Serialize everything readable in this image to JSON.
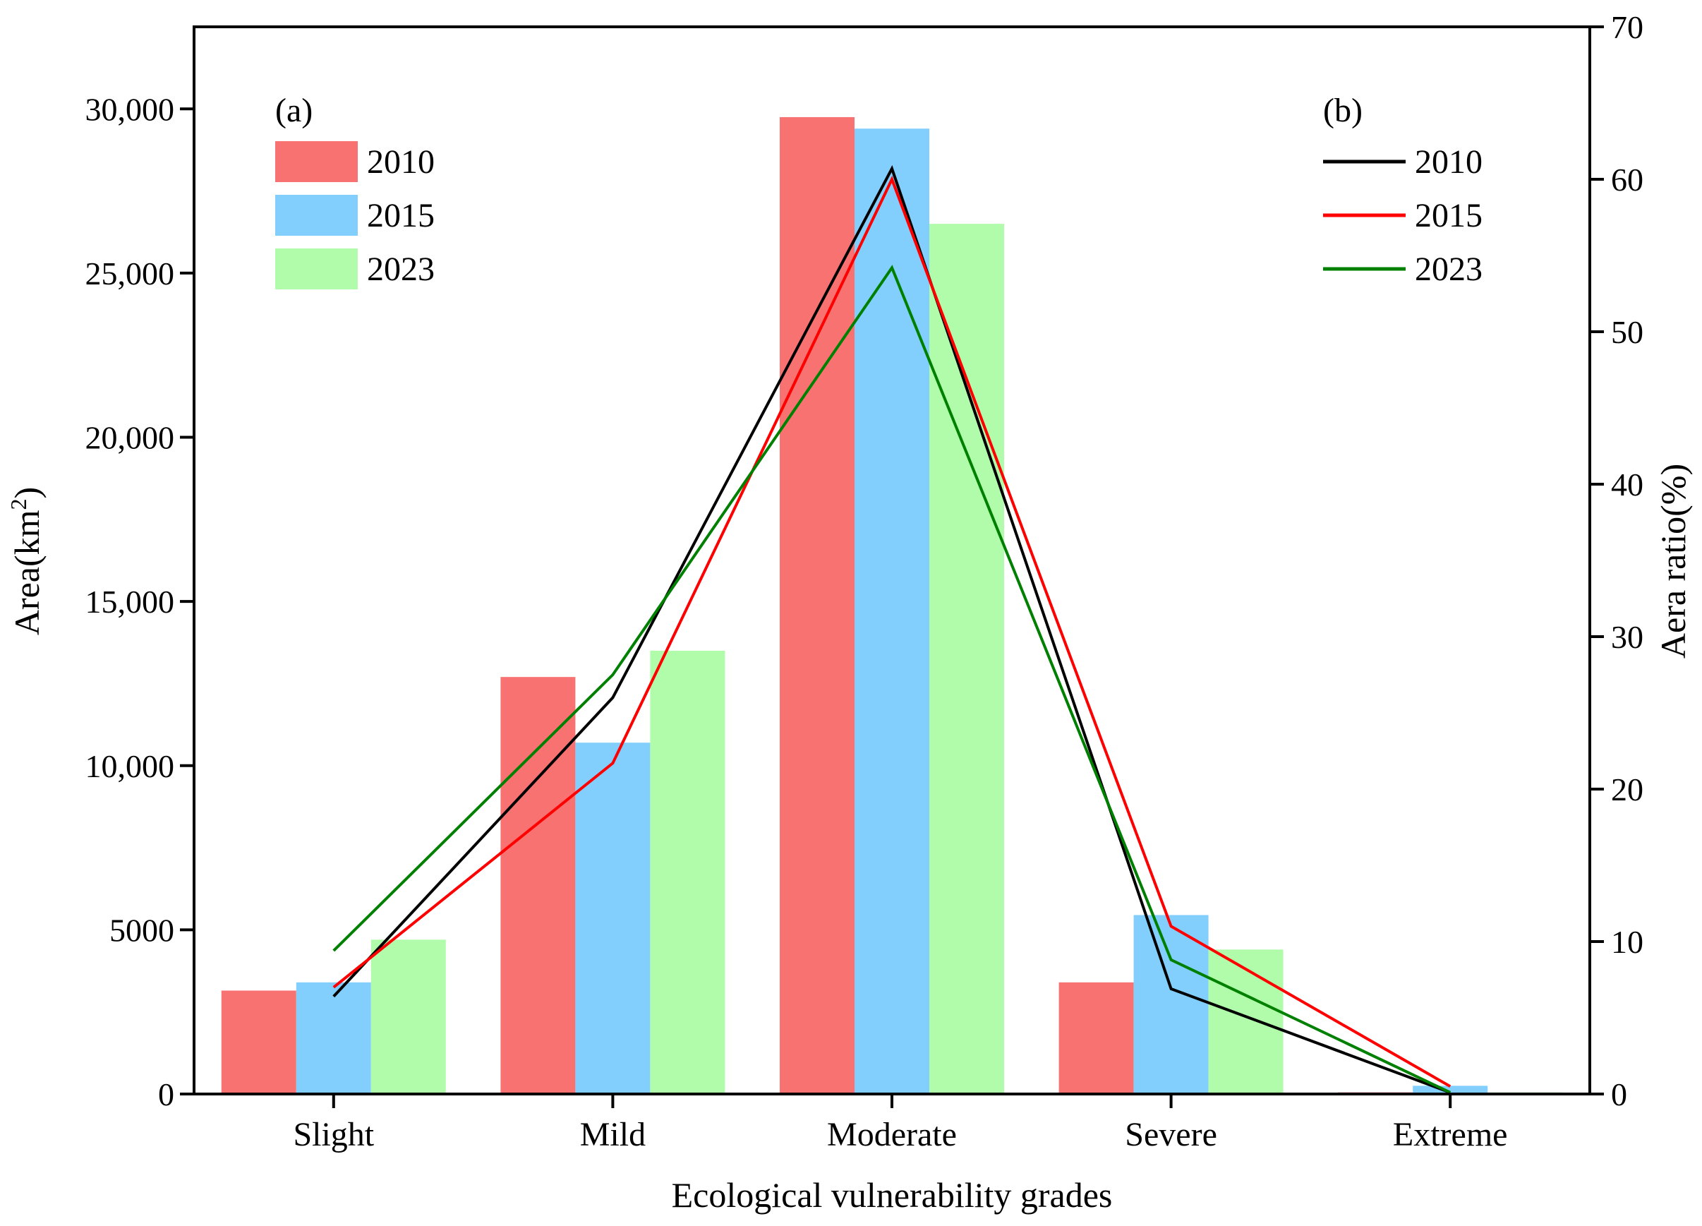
{
  "chart_data": {
    "type": "bar",
    "title": "",
    "xlabel": "Ecological vulnerability grades",
    "ylabel": "Area(km²)",
    "ylabel_parts": {
      "base": "Area(km",
      "sup": "2",
      "close": ")"
    },
    "y2label": "Aera ratio(%)",
    "categories": [
      "Slight",
      "Mild",
      "Moderate",
      "Severe",
      "Extreme"
    ],
    "ylim": [
      0,
      32500
    ],
    "y_ticks": [
      0,
      5000,
      10000,
      15000,
      20000,
      25000,
      30000
    ],
    "y_tick_labels": [
      "0",
      "5000",
      "10,000",
      "15,000",
      "20,000",
      "25,000",
      "30,000"
    ],
    "y2lim": [
      0,
      70
    ],
    "y2_ticks": [
      0,
      10,
      20,
      30,
      40,
      50,
      60,
      70
    ],
    "y2_tick_labels": [
      "0",
      "10",
      "20",
      "30",
      "40",
      "50",
      "60",
      "70"
    ],
    "bar_panel_label": "(a)",
    "line_panel_label": "(b)",
    "bar_series": [
      {
        "name": "2010",
        "color": "#F87272",
        "values": [
          3150,
          12700,
          29750,
          3400,
          50
        ]
      },
      {
        "name": "2015",
        "color": "#82CFFD",
        "values": [
          3400,
          10700,
          29400,
          5450,
          250
        ]
      },
      {
        "name": "2023",
        "color": "#B0FCAA",
        "values": [
          4700,
          13500,
          26500,
          4400,
          50
        ]
      }
    ],
    "line_series": [
      {
        "name": "2010",
        "color": "#000000",
        "values": [
          6.4,
          26.0,
          60.7,
          6.9,
          0.1
        ]
      },
      {
        "name": "2015",
        "color": "#FF0000",
        "values": [
          7.0,
          21.7,
          60.0,
          11.0,
          0.5
        ]
      },
      {
        "name": "2023",
        "color": "#008000",
        "values": [
          9.4,
          27.5,
          54.2,
          8.8,
          0.1
        ]
      }
    ]
  }
}
